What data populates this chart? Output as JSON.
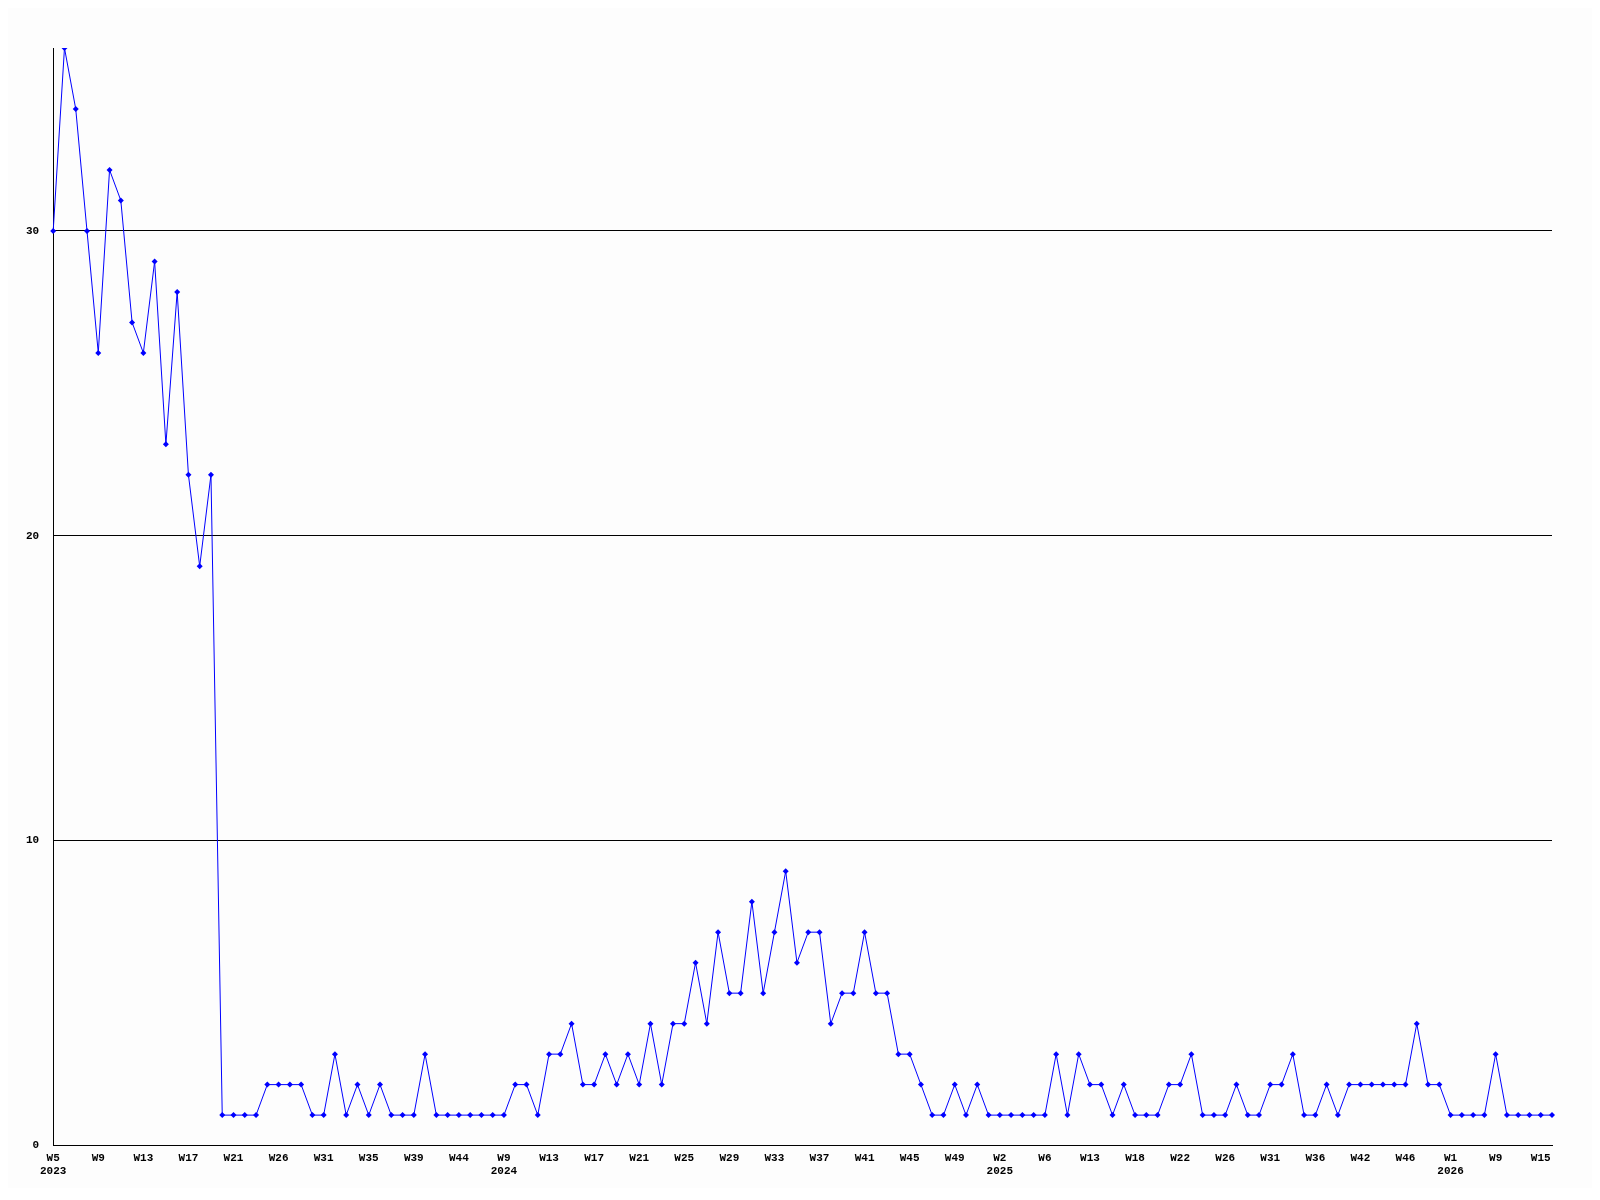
{
  "chart_data": {
    "type": "line",
    "categories": [
      "W5\n2023",
      null,
      null,
      null,
      "W9",
      null,
      null,
      null,
      "W13",
      null,
      null,
      null,
      "W17",
      null,
      null,
      null,
      "W21",
      null,
      null,
      null,
      "W26",
      null,
      null,
      null,
      "W31",
      null,
      null,
      null,
      "W35",
      null,
      null,
      null,
      "W39",
      null,
      null,
      null,
      "W44",
      null,
      null,
      null,
      "W9\n2024",
      null,
      null,
      null,
      "W13",
      null,
      null,
      null,
      "W17",
      null,
      null,
      null,
      "W21",
      null,
      null,
      null,
      "W25",
      null,
      null,
      null,
      "W29",
      null,
      null,
      null,
      "W33",
      null,
      null,
      null,
      "W37",
      null,
      null,
      null,
      "W41",
      null,
      null,
      null,
      "W45",
      null,
      null,
      null,
      "W49",
      null,
      null,
      null,
      "W2\n2025",
      null,
      null,
      null,
      "W6",
      null,
      null,
      null,
      "W13",
      null,
      null,
      null,
      "W18",
      null,
      null,
      null,
      "W22",
      null,
      null,
      null,
      "W26",
      null,
      null,
      null,
      "W31",
      null,
      null,
      null,
      "W36",
      null,
      null,
      null,
      "W42",
      null,
      null,
      null,
      "W46",
      null,
      null,
      null,
      "W1\n2026",
      null,
      null,
      null,
      "W9",
      null,
      null,
      null,
      "W15",
      null
    ],
    "series": [
      {
        "color": "#0000ff",
        "values": [
          30,
          36,
          34,
          30,
          26,
          32,
          31,
          27,
          26,
          29,
          23,
          28,
          22,
          19,
          22,
          1,
          1,
          1,
          1,
          2,
          2,
          2,
          2,
          1,
          1,
          3,
          1,
          2,
          1,
          2,
          1,
          1,
          1,
          3,
          1,
          1,
          1,
          1,
          1,
          1,
          1,
          2,
          2,
          1,
          3,
          3,
          4,
          2,
          2,
          3,
          2,
          3,
          2,
          4,
          2,
          4,
          4,
          6,
          4,
          7,
          5,
          5,
          8,
          5,
          7,
          9,
          6,
          7,
          7,
          4,
          5,
          5,
          7,
          5,
          5,
          3,
          3,
          2,
          1,
          1,
          2,
          1,
          2,
          1,
          1,
          1,
          1,
          1,
          1,
          3,
          1,
          3,
          2,
          2,
          1,
          2,
          1,
          1,
          1,
          2,
          2,
          3,
          1,
          1,
          1,
          2,
          1,
          1,
          2,
          2,
          3,
          1,
          1,
          2,
          1,
          2,
          2,
          2,
          2,
          2,
          2,
          4,
          2,
          2,
          1,
          1,
          1,
          1,
          3,
          1,
          1,
          1,
          1,
          1
        ]
      }
    ],
    "ylim": [
      0,
      36
    ],
    "yticks": [
      0,
      10,
      20,
      30
    ],
    "grid": "y",
    "marker": "diamond",
    "line_style": "solid",
    "legend": false
  }
}
